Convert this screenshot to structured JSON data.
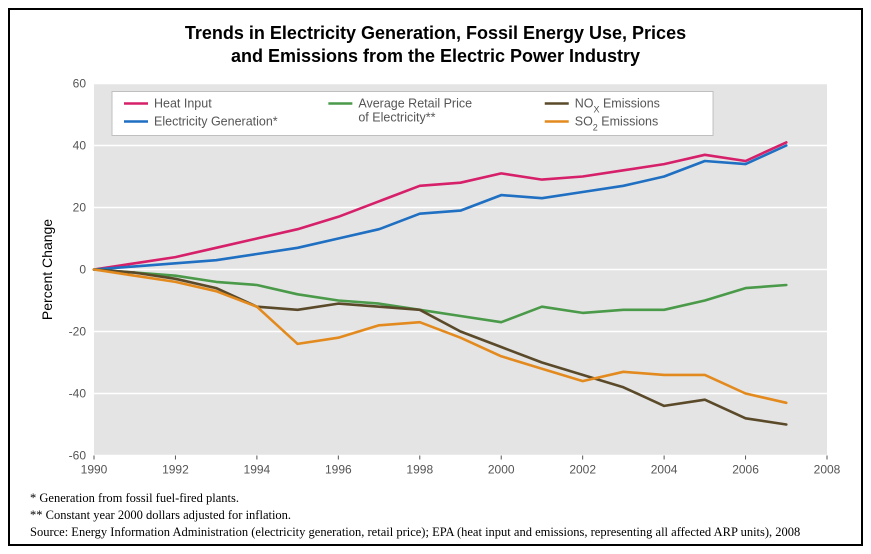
{
  "title_line1": "Trends in Electricity Generation, Fossil Energy Use, Prices",
  "title_line2": "and Emissions from the Electric Power Industry",
  "chart": {
    "type": "line",
    "background_color": "#e4e4e4",
    "grid_color": "#ffffff",
    "axis_color": "#555555",
    "tick_label_color": "#555555",
    "y_axis_label": "Percent Change",
    "y_axis_label_fontsize": 14,
    "tick_fontsize": 12,
    "legend_fontsize": 12.5,
    "line_width": 2.6,
    "x": {
      "min": 1990,
      "max": 2008,
      "ticks": [
        1990,
        1992,
        1994,
        1996,
        1998,
        2000,
        2002,
        2004,
        2006,
        2008
      ]
    },
    "y": {
      "min": -60,
      "max": 60,
      "ticks": [
        -60,
        -40,
        -20,
        0,
        20,
        40,
        60
      ]
    },
    "series": [
      {
        "name": "Heat Input",
        "color": "#d6206a",
        "values": [
          0,
          2,
          4,
          7,
          10,
          13,
          17,
          22,
          27,
          28,
          31,
          29,
          30,
          32,
          34,
          37,
          35,
          41
        ]
      },
      {
        "name": "Electricity Generation*",
        "color": "#1f6fc2",
        "values": [
          0,
          1,
          2,
          3,
          5,
          7,
          10,
          13,
          18,
          19,
          24,
          23,
          25,
          27,
          30,
          35,
          34,
          40
        ]
      },
      {
        "name": "Average Retail Price of Electricity**",
        "color": "#4a9a4a",
        "values": [
          0,
          -1,
          -2,
          -4,
          -5,
          -8,
          -10,
          -11,
          -13,
          -15,
          -17,
          -12,
          -14,
          -13,
          -13,
          -10,
          -6,
          -5
        ]
      },
      {
        "name": "NOX Emissions",
        "color": "#5a4a2a",
        "values": [
          0,
          -1,
          -3,
          -6,
          -12,
          -13,
          -11,
          -12,
          -13,
          -20,
          -25,
          -30,
          -34,
          -38,
          -44,
          -42,
          -48,
          -50
        ]
      },
      {
        "name": "SO2 Emissions",
        "color": "#e38a1f",
        "values": [
          0,
          -2,
          -4,
          -7,
          -12,
          -24,
          -22,
          -18,
          -17,
          -22,
          -28,
          -32,
          -36,
          -33,
          -34,
          -34,
          -40,
          -43
        ]
      }
    ],
    "legend": {
      "rows": [
        [
          "Heat Input",
          "Average Retail Price of Electricity**",
          "NOX Emissions"
        ],
        [
          "Electricity Generation*",
          "",
          "SO2 Emissions"
        ]
      ],
      "col_series": [
        [
          0,
          1
        ],
        [
          2
        ],
        [
          3,
          4
        ]
      ]
    }
  },
  "footnotes": {
    "line1": "* Generation from fossil fuel-fired plants.",
    "line2": "** Constant year 2000 dollars adjusted for inflation.",
    "line3": "Source: Energy Information Administration (electricity generation, retail price); EPA (heat input and emissions, representing all affected ARP units), 2008"
  }
}
